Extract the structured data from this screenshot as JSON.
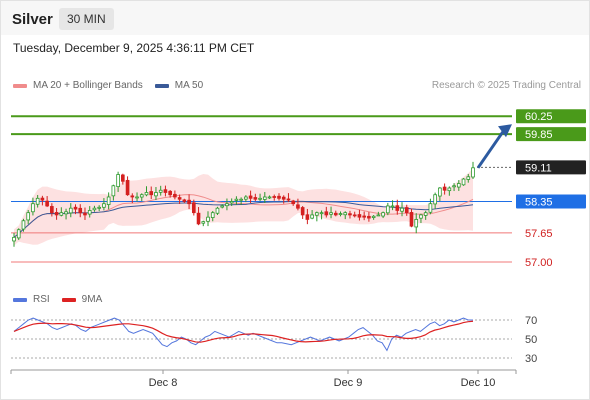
{
  "header": {
    "instrument": "Silver",
    "timeframe": "30 MIN",
    "timestamp": "Tuesday, December 9, 2025 4:36:11 PM CET"
  },
  "legend": {
    "bollinger_label": "MA 20 + Bollinger Bands",
    "ma50_label": "MA 50",
    "credit": "Research © 2025 Trading Central"
  },
  "rsi_legend": {
    "rsi_label": "RSI",
    "ma9_label": "9MA"
  },
  "colors": {
    "bollinger": "#f08c8c",
    "band_fill": "#fde1e1",
    "ma50": "#3a5a98",
    "resistance": "#4a9a1a",
    "support": "#f07878",
    "pivot": "#1f6fe5",
    "current": "#222222",
    "arrow": "#2c5aa0",
    "candle_up": "#2e9a2e",
    "candle_down": "#d42020",
    "rsi": "#5577dd",
    "rsi_ma": "#dd2222"
  },
  "chart_data": {
    "type": "candlestick",
    "instrument": "Silver",
    "interval": "30 MIN",
    "x_tick_labels": [
      "Dec 8",
      "Dec 9",
      "Dec 10"
    ],
    "y_range": [
      56.6,
      60.7
    ],
    "levels": [
      {
        "label": "60.25",
        "value": 60.25,
        "kind": "resistance"
      },
      {
        "label": "59.85",
        "value": 59.85,
        "kind": "resistance"
      },
      {
        "label": "59.11",
        "value": 59.11,
        "kind": "current"
      },
      {
        "label": "58.35",
        "value": 58.35,
        "kind": "pivot"
      },
      {
        "label": "57.65",
        "value": 57.65,
        "kind": "support"
      },
      {
        "label": "57.00",
        "value": 57.0,
        "kind": "support"
      }
    ],
    "close_series": [
      57.55,
      57.72,
      57.92,
      58.1,
      58.3,
      58.42,
      58.38,
      58.25,
      58.1,
      58.05,
      58.1,
      58.12,
      58.2,
      58.18,
      58.1,
      58.05,
      58.15,
      58.2,
      58.22,
      58.3,
      58.45,
      58.7,
      58.95,
      58.8,
      58.5,
      58.45,
      58.45,
      58.5,
      58.55,
      58.5,
      58.55,
      58.6,
      58.55,
      58.5,
      58.45,
      58.4,
      58.35,
      58.3,
      58.1,
      57.85,
      57.9,
      58.0,
      58.1,
      58.2,
      58.25,
      58.3,
      58.35,
      58.4,
      58.4,
      58.45,
      58.42,
      58.4,
      58.42,
      58.45,
      58.45,
      58.45,
      58.42,
      58.4,
      58.38,
      58.3,
      58.2,
      58.05,
      57.95,
      58.05,
      58.1,
      58.1,
      58.05,
      58.1,
      58.05,
      58.08,
      58.1,
      58.05,
      58.05,
      58.0,
      58.0,
      57.98,
      58.02,
      58.05,
      58.1,
      58.25,
      58.25,
      58.15,
      58.2,
      58.1,
      57.8,
      57.95,
      58.05,
      58.1,
      58.3,
      58.5,
      58.65,
      58.6,
      58.65,
      58.7,
      58.75,
      58.85,
      58.9,
      59.1
    ],
    "rsi": {
      "y_ticks": [
        70,
        50,
        30
      ],
      "values": [
        58,
        62,
        66,
        70,
        72,
        70,
        68,
        66,
        62,
        60,
        62,
        64,
        66,
        64,
        60,
        58,
        62,
        64,
        66,
        68,
        70,
        72,
        70,
        64,
        58,
        56,
        58,
        60,
        58,
        56,
        50,
        44,
        42,
        46,
        48,
        52,
        50,
        46,
        44,
        48,
        52,
        54,
        58,
        56,
        54,
        52,
        55,
        58,
        56,
        54,
        56,
        54,
        52,
        50,
        48,
        46,
        46,
        45,
        44,
        46,
        48,
        50,
        52,
        50,
        48,
        50,
        52,
        50,
        48,
        50,
        52,
        56,
        60,
        62,
        58,
        54,
        48,
        46,
        38,
        50,
        54,
        52,
        56,
        58,
        60,
        58,
        62,
        66,
        68,
        64,
        66,
        70,
        68,
        70,
        72,
        70,
        70
      ]
    }
  }
}
